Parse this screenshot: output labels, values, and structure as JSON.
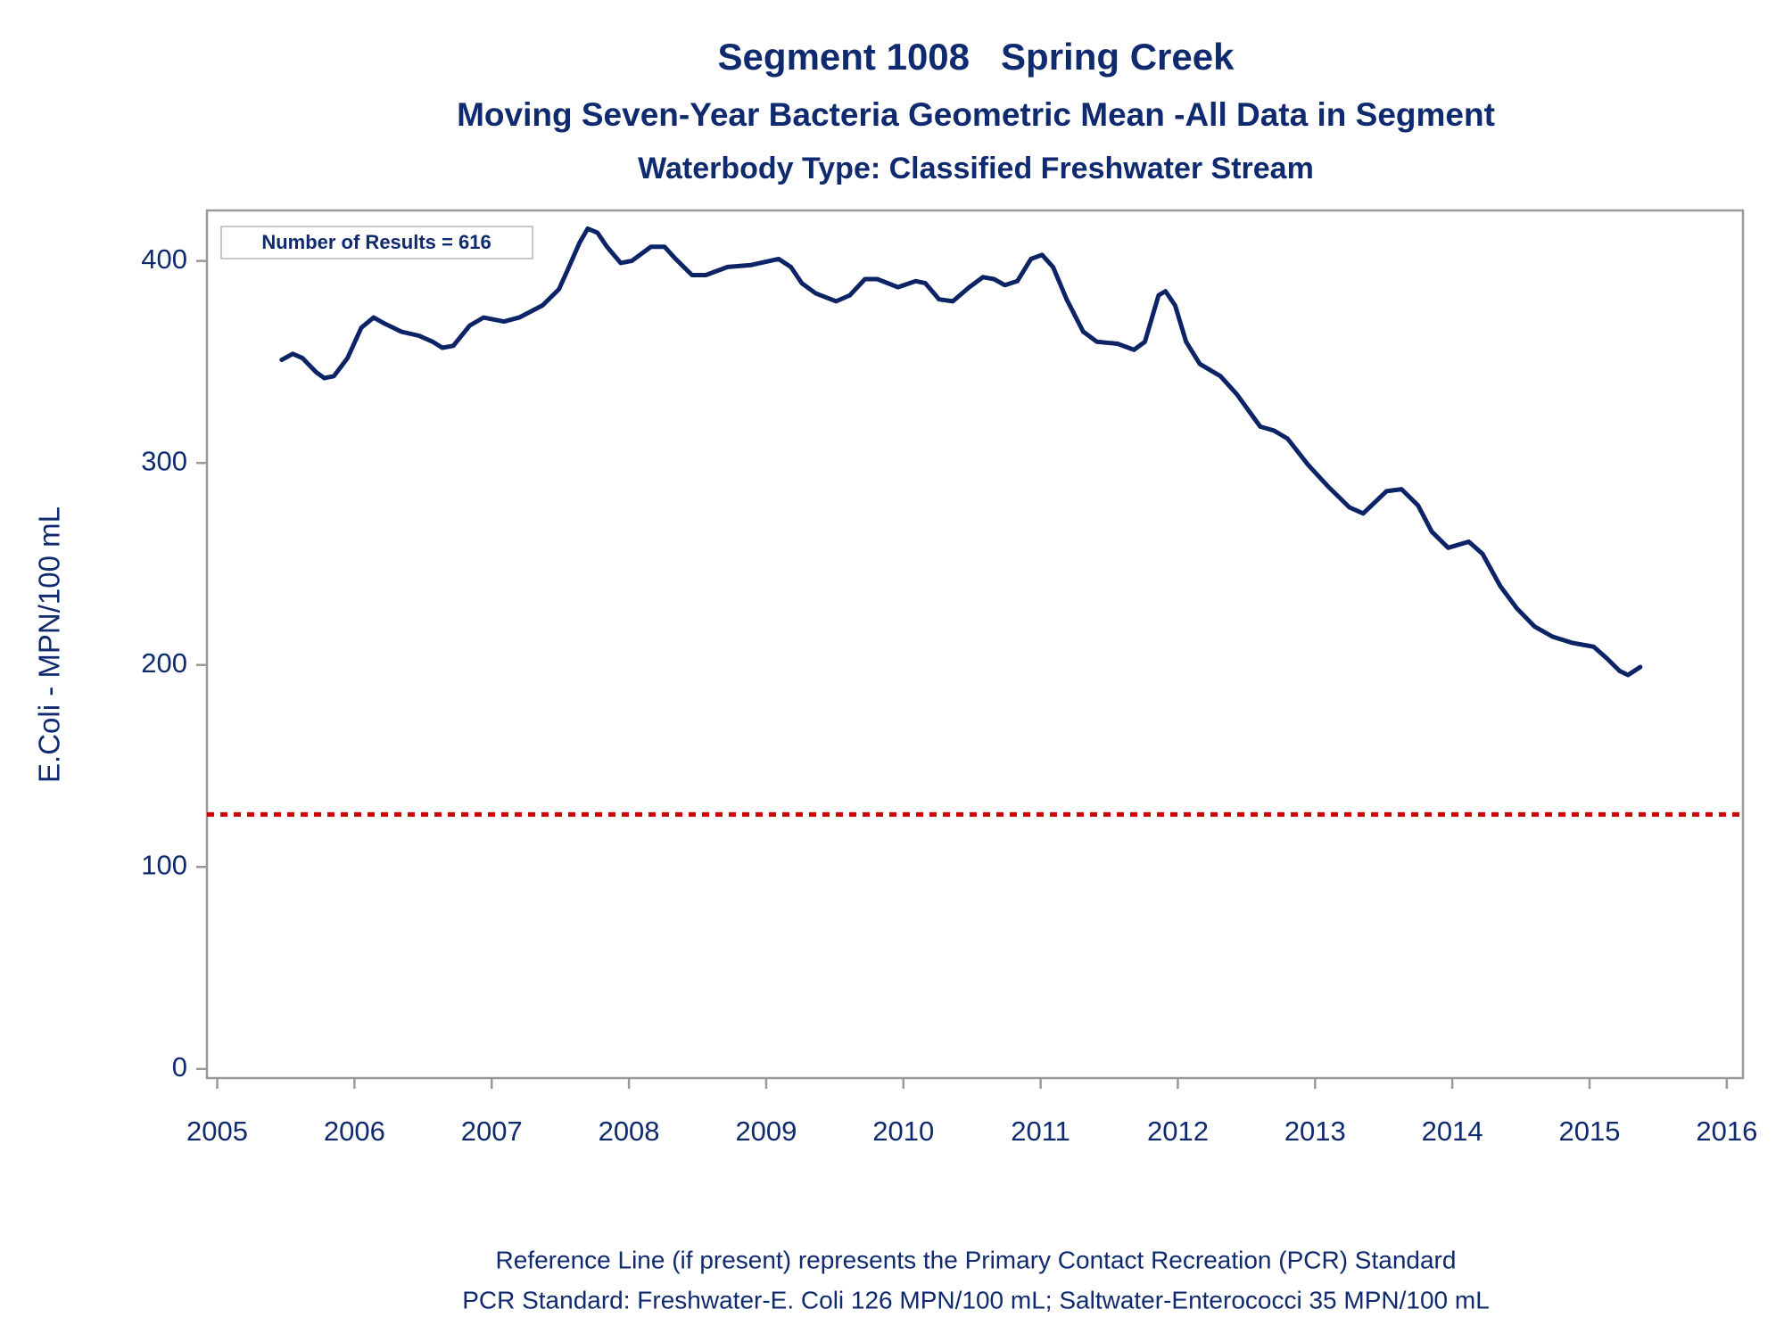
{
  "chart_data": {
    "type": "line",
    "title": "Segment 1008   Spring Creek",
    "subtitle": "Moving Seven-Year Bacteria Geometric Mean -All Data in Segment",
    "subtitle2": "Waterbody Type: Classified Freshwater Stream",
    "y_label": "E.Coli - MPN/100 mL",
    "annotation": "Number of Results = 616",
    "footnotes": [
      "Reference Line (if present) represents the Primary Contact Recreation (PCR) Standard",
      "PCR Standard: Freshwater-E. Coli 126 MPN/100 mL; Saltwater-Enterococci 35 MPN/100 mL"
    ],
    "x": [
      2005.47,
      2005.55,
      2005.62,
      2005.72,
      2005.78,
      2005.85,
      2005.95,
      2006.05,
      2006.14,
      2006.22,
      2006.34,
      2006.47,
      2006.57,
      2006.64,
      2006.72,
      2006.84,
      2006.94,
      2007.09,
      2007.2,
      2007.37,
      2007.49,
      2007.55,
      2007.64,
      2007.7,
      2007.77,
      2007.84,
      2007.94,
      2008.02,
      2008.16,
      2008.26,
      2008.34,
      2008.46,
      2008.56,
      2008.72,
      2008.89,
      2009.09,
      2009.18,
      2009.26,
      2009.36,
      2009.51,
      2009.61,
      2009.72,
      2009.81,
      2009.96,
      2010.09,
      2010.16,
      2010.26,
      2010.36,
      2010.48,
      2010.58,
      2010.66,
      2010.74,
      2010.83,
      2010.93,
      2011.01,
      2011.09,
      2011.19,
      2011.31,
      2011.41,
      2011.56,
      2011.68,
      2011.76,
      2011.86,
      2011.91,
      2011.98,
      2012.06,
      2012.16,
      2012.31,
      2012.43,
      2012.6,
      2012.7,
      2012.8,
      2012.95,
      2013.1,
      2013.25,
      2013.35,
      2013.52,
      2013.63,
      2013.75,
      2013.85,
      2013.97,
      2014.12,
      2014.22,
      2014.35,
      2014.47,
      2014.6,
      2014.73,
      2014.87,
      2015.03,
      2015.13,
      2015.22,
      2015.28,
      2015.37
    ],
    "series": [
      {
        "color": "#0c2466",
        "values": [
          351,
          354,
          352,
          345,
          342,
          343,
          352,
          367,
          372,
          369,
          365,
          363,
          360,
          357,
          358,
          368,
          372,
          370,
          372,
          378,
          386,
          395,
          409,
          416,
          414,
          407,
          399,
          400,
          407,
          407,
          401,
          393,
          393,
          397,
          398,
          401,
          397,
          389,
          384,
          380,
          383,
          391,
          391,
          387,
          390,
          389,
          381,
          380,
          387,
          392,
          391,
          388,
          390,
          401,
          403,
          397,
          381,
          365,
          360,
          359,
          356,
          360,
          383,
          385,
          378,
          360,
          349,
          343,
          334,
          318,
          316,
          312,
          299,
          288,
          278,
          275,
          286,
          287,
          279,
          266,
          258,
          261,
          255,
          239,
          228,
          219,
          214,
          211,
          209,
          203,
          197,
          195,
          199
        ]
      }
    ],
    "reference_line": {
      "value": 126,
      "color": "#cc0000"
    },
    "xlim": [
      2004.925,
      2016.118
    ],
    "ylim": [
      -4.5,
      425
    ],
    "xticks": [
      2005,
      2006,
      2007,
      2008,
      2009,
      2010,
      2011,
      2012,
      2013,
      2014,
      2015,
      2016
    ],
    "yticks": [
      0,
      100,
      200,
      300,
      400
    ]
  }
}
